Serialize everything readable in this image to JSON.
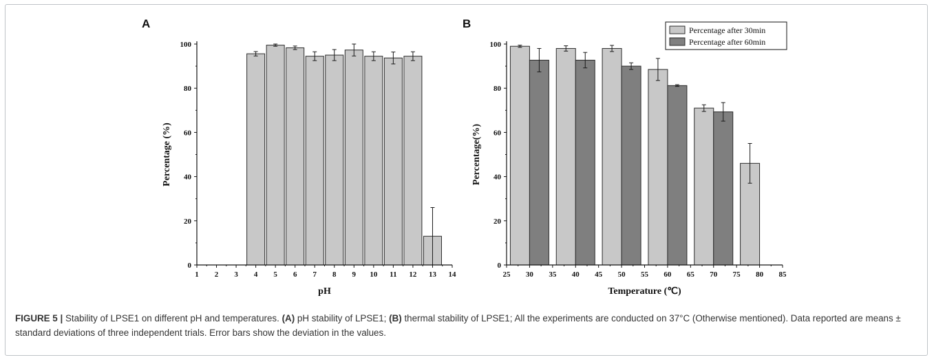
{
  "chart_data": [
    {
      "panel": "A",
      "type": "bar",
      "xlabel": "pH",
      "ylabel": "Percentage (%)",
      "xlim": [
        1,
        14
      ],
      "ylim": [
        0,
        100
      ],
      "x_ticks": [
        1,
        2,
        3,
        4,
        5,
        6,
        7,
        8,
        9,
        10,
        11,
        12,
        13,
        14
      ],
      "y_ticks": [
        0,
        20,
        40,
        60,
        80,
        100
      ],
      "bar_color": "#c8c8c8",
      "series": [
        {
          "x": [
            4,
            5,
            6,
            7,
            8,
            9,
            10,
            11,
            12,
            13
          ],
          "values": [
            95.6,
            99.5,
            98.3,
            94.5,
            95,
            97.3,
            94.5,
            93.7,
            94.5,
            13
          ],
          "errors": [
            1.0,
            0.5,
            0.8,
            2.0,
            2.5,
            2.7,
            2.0,
            2.7,
            2.0,
            13
          ]
        }
      ]
    },
    {
      "panel": "B",
      "type": "bar",
      "xlabel": "Temperature (℃)",
      "ylabel": "Percentage(%)",
      "xlim": [
        25,
        85
      ],
      "ylim": [
        0,
        100
      ],
      "x_ticks": [
        25,
        30,
        35,
        40,
        45,
        50,
        55,
        60,
        65,
        70,
        75,
        80,
        85
      ],
      "y_ticks": [
        0,
        20,
        40,
        60,
        80,
        100
      ],
      "legend_position": "top-right",
      "series": [
        {
          "name": "Percentage after 30min",
          "color": "#c8c8c8",
          "x": [
            30,
            40,
            50,
            60,
            70,
            80
          ],
          "values": [
            99,
            98,
            98,
            88.5,
            71,
            46
          ],
          "errors": [
            0.5,
            1.2,
            1.4,
            5.0,
            1.5,
            9.0
          ]
        },
        {
          "name": "Percentage after 60min",
          "color": "#7f7f7f",
          "x": [
            30,
            40,
            50,
            60,
            70
          ],
          "values": [
            92.7,
            92.7,
            90,
            81.2,
            69.3
          ],
          "errors": [
            5.3,
            3.5,
            1.5,
            0.4,
            4.2
          ]
        }
      ]
    }
  ],
  "caption": {
    "label": "FIGURE 5 |",
    "part1": " Stability of LPSE1 on different pH and temperatures. ",
    "a_label": "(A)",
    "part2": " pH stability of LPSE1; ",
    "b_label": "(B)",
    "part3": " thermal stability of LPSE1; All the experiments are conducted on 37°C (Otherwise mentioned). Data reported are means ± standard deviations of three independent trials. Error bars show the deviation in the values."
  }
}
